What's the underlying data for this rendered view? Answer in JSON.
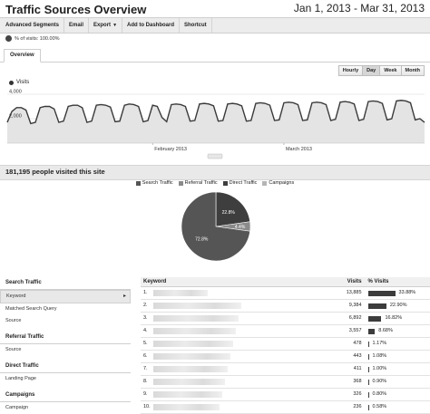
{
  "header": {
    "title": "Traffic Sources Overview",
    "date_range": "Jan 1, 2013 - Mar 31, 2013"
  },
  "toolbar": {
    "advanced_segments": "Advanced Segments",
    "email": "Email",
    "export": "Export",
    "add_to_dashboard": "Add to Dashboard",
    "shortcut": "Shortcut"
  },
  "segment": {
    "label": "% of visits: 100.00%"
  },
  "tabs": {
    "overview": "Overview"
  },
  "granularity": {
    "options": [
      "Hourly",
      "Day",
      "Week",
      "Month"
    ],
    "active": "Day"
  },
  "colors": {
    "series": "#3a3a3a",
    "fill": "#e4e4e4",
    "search": "#555555",
    "referral": "#8a8a8a",
    "direct": "#3e3e3e",
    "campaigns": "#b5b5b5"
  },
  "chart_data": [
    {
      "type": "area",
      "series_label": "Visits",
      "ytick_labels": [
        "4,000",
        "2,000"
      ],
      "ylim": [
        0,
        4000
      ],
      "xtick_labels": [
        "February 2013",
        "March 2013"
      ],
      "x": [
        "2013-01-01",
        "2013-01-02",
        "2013-01-03",
        "2013-01-04",
        "2013-01-05",
        "2013-01-06",
        "2013-01-07",
        "2013-01-08",
        "2013-01-09",
        "2013-01-10",
        "2013-01-11",
        "2013-01-12",
        "2013-01-13",
        "2013-01-14",
        "2013-01-15",
        "2013-01-16",
        "2013-01-17",
        "2013-01-18",
        "2013-01-19",
        "2013-01-20",
        "2013-01-21",
        "2013-01-22",
        "2013-01-23",
        "2013-01-24",
        "2013-01-25",
        "2013-01-26",
        "2013-01-27",
        "2013-01-28",
        "2013-01-29",
        "2013-01-30",
        "2013-01-31",
        "2013-02-01",
        "2013-02-02",
        "2013-02-03",
        "2013-02-04",
        "2013-02-05",
        "2013-02-06",
        "2013-02-07",
        "2013-02-08",
        "2013-02-09",
        "2013-02-10",
        "2013-02-11",
        "2013-02-12",
        "2013-02-13",
        "2013-02-14",
        "2013-02-15",
        "2013-02-16",
        "2013-02-17",
        "2013-02-18",
        "2013-02-19",
        "2013-02-20",
        "2013-02-21",
        "2013-02-22",
        "2013-02-23",
        "2013-02-24",
        "2013-02-25",
        "2013-02-26",
        "2013-02-27",
        "2013-02-28",
        "2013-03-01",
        "2013-03-02",
        "2013-03-03",
        "2013-03-04",
        "2013-03-05",
        "2013-03-06",
        "2013-03-07",
        "2013-03-08",
        "2013-03-09",
        "2013-03-10",
        "2013-03-11",
        "2013-03-12",
        "2013-03-13",
        "2013-03-14",
        "2013-03-15",
        "2013-03-16",
        "2013-03-17",
        "2013-03-18",
        "2013-03-19",
        "2013-03-20",
        "2013-03-21",
        "2013-03-22",
        "2013-03-23",
        "2013-03-24",
        "2013-03-25",
        "2013-03-26",
        "2013-03-27",
        "2013-03-28",
        "2013-03-29",
        "2013-03-30",
        "2013-03-31"
      ],
      "values": [
        1700,
        2600,
        2900,
        2900,
        2700,
        1600,
        1700,
        2900,
        3000,
        3000,
        2800,
        1700,
        1800,
        3000,
        3100,
        3100,
        2900,
        1700,
        1800,
        3100,
        3150,
        3100,
        2950,
        1750,
        1800,
        3100,
        3200,
        3150,
        3000,
        1750,
        1850,
        3100,
        3000,
        2100,
        1750,
        3150,
        3200,
        3150,
        3000,
        1800,
        1850,
        3200,
        3250,
        3200,
        3050,
        1800,
        1850,
        3200,
        3250,
        3200,
        3050,
        1800,
        1850,
        3250,
        3300,
        3250,
        3100,
        1850,
        1900,
        3300,
        3350,
        3300,
        3150,
        1850,
        1900,
        3300,
        3350,
        3300,
        3150,
        1850,
        1950,
        3350,
        3400,
        3350,
        3200,
        1850,
        1950,
        3400,
        3450,
        3400,
        3250,
        1900,
        2000,
        3450,
        3500,
        3450,
        3300,
        1900,
        2000,
        1700
      ]
    },
    {
      "type": "pie",
      "legend": [
        "Search Traffic",
        "Referral Traffic",
        "Direct Traffic",
        "Campaigns"
      ],
      "values": [
        72.8,
        4.4,
        22.8,
        0.0
      ],
      "labels": [
        "72.8%",
        "4.4%",
        "22.8%",
        ""
      ]
    }
  ],
  "summary": {
    "text": "181,195 people visited this site"
  },
  "sidebar": {
    "sections": [
      {
        "title": "Search Traffic",
        "items": [
          {
            "label": "Keyword",
            "selected": true
          },
          {
            "label": "Matched Search Query"
          },
          {
            "label": "Source"
          }
        ]
      },
      {
        "title": "Referral Traffic",
        "items": [
          {
            "label": "Source"
          }
        ]
      },
      {
        "title": "Direct Traffic",
        "items": [
          {
            "label": "Landing Page"
          }
        ]
      },
      {
        "title": "Campaigns",
        "items": [
          {
            "label": "Campaign"
          }
        ]
      }
    ]
  },
  "table": {
    "headers": {
      "keyword": "Keyword",
      "visits": "Visits",
      "pct": "% Visits"
    },
    "rows": [
      {
        "rank": "1.",
        "visits": "13,885",
        "pct": "33.88%",
        "share": 33.88
      },
      {
        "rank": "2.",
        "visits": "9,384",
        "pct": "22.90%",
        "share": 22.9
      },
      {
        "rank": "3.",
        "visits": "6,892",
        "pct": "16.82%",
        "share": 16.82
      },
      {
        "rank": "4.",
        "visits": "3,557",
        "pct": "8.68%",
        "share": 8.68
      },
      {
        "rank": "5.",
        "visits": "478",
        "pct": "1.17%",
        "share": 1.17
      },
      {
        "rank": "6.",
        "visits": "443",
        "pct": "1.08%",
        "share": 1.08
      },
      {
        "rank": "7.",
        "visits": "411",
        "pct": "1.00%",
        "share": 1.0
      },
      {
        "rank": "8.",
        "visits": "368",
        "pct": "0.90%",
        "share": 0.9
      },
      {
        "rank": "9.",
        "visits": "326",
        "pr": "",
        "pct": "0.80%",
        "share": 0.8
      },
      {
        "rank": "10.",
        "visits": "236",
        "pct": "0.58%",
        "share": 0.58
      }
    ]
  }
}
